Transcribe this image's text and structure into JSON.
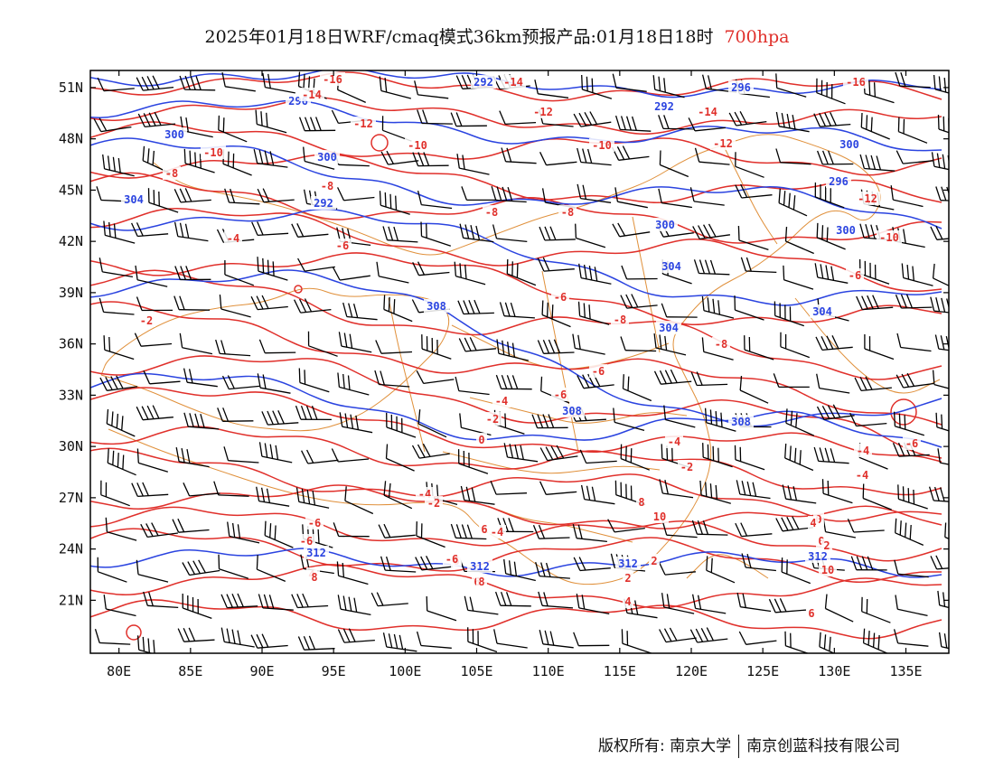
{
  "title": {
    "main": "2025年01月18日WRF/cmaq模式36km预报产品:01月18日18时",
    "level": "700hpa"
  },
  "axes": {
    "x_ticks": [
      "80E",
      "85E",
      "90E",
      "95E",
      "100E",
      "105E",
      "110E",
      "115E",
      "120E",
      "125E",
      "130E",
      "135E"
    ],
    "y_ticks": [
      "51N",
      "48N",
      "45N",
      "42N",
      "39N",
      "36N",
      "33N",
      "30N",
      "27N",
      "24N",
      "21N"
    ],
    "lon_range": [
      78,
      138
    ],
    "lat_range": [
      17.9,
      52
    ]
  },
  "colors": {
    "geopotential": "#2b44e0",
    "temperature": "#e0302b",
    "wind": "#000000",
    "boundary": "#e0903b"
  },
  "map_labels": {
    "geopotential": [
      "292",
      "296",
      "300",
      "300",
      "304",
      "292",
      "292",
      "296",
      "300",
      "296",
      "300",
      "300",
      "304",
      "304",
      "308",
      "304",
      "308",
      "308",
      "312",
      "312",
      "312",
      "312"
    ],
    "temperature": [
      "-16",
      "-14",
      "-14",
      "-12",
      "-10",
      "-12",
      "-14",
      "-12",
      "-10",
      "-10",
      "-16",
      "-8",
      "-8",
      "-8",
      "-8",
      "-12",
      "-10",
      "-4",
      "-6",
      "-6",
      "-6",
      "-8",
      "-8",
      "-6",
      "-2",
      "-4",
      "-6",
      "-4",
      "-2",
      "0",
      "-4",
      "-6",
      "-4",
      "-2",
      "-2",
      "-4",
      "-6",
      "-6",
      "4",
      "6",
      "6",
      "8",
      "10",
      "10",
      "0",
      "2",
      "2",
      "4",
      "6",
      "6",
      "0",
      "2",
      "4",
      "-4",
      "-6",
      "8",
      "8"
    ]
  },
  "copyright": {
    "left": "版权所有: 南京大学",
    "right": "南京创蓝科技有限公司"
  }
}
